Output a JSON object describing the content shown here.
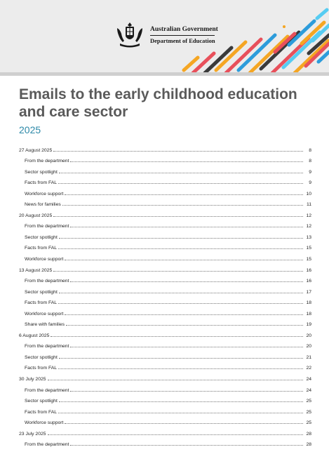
{
  "header": {
    "gov_name": "Australian Government",
    "department": "Department of Education"
  },
  "title": "Emails to the early childhood education and care sector",
  "year": "2025",
  "colors": {
    "title": "#5a5a5a",
    "year": "#2d89a8",
    "stripe_colors": [
      "#f5a623",
      "#e8505b",
      "#3a3a3a",
      "#2d9cdb",
      "#56ccf2"
    ]
  },
  "toc": [
    {
      "label": "27 August 2025",
      "page": "8",
      "level": 1
    },
    {
      "label": "From the department",
      "page": "8",
      "level": 2
    },
    {
      "label": "Sector spotlight",
      "page": "9",
      "level": 2
    },
    {
      "label": "Facts from FAL",
      "page": "9",
      "level": 2
    },
    {
      "label": "Workforce support",
      "page": "10",
      "level": 2
    },
    {
      "label": "News for families",
      "page": "11",
      "level": 2
    },
    {
      "label": "20 August 2025",
      "page": "12",
      "level": 1
    },
    {
      "label": "From the department",
      "page": "12",
      "level": 2
    },
    {
      "label": "Sector spotlight",
      "page": "13",
      "level": 2
    },
    {
      "label": "Facts from FAL",
      "page": "15",
      "level": 2
    },
    {
      "label": "Workforce support",
      "page": "15",
      "level": 2
    },
    {
      "label": "13 August 2025",
      "page": "16",
      "level": 1
    },
    {
      "label": "From the department",
      "page": "16",
      "level": 2
    },
    {
      "label": "Sector spotlight",
      "page": "17",
      "level": 2
    },
    {
      "label": "Facts from FAL",
      "page": "18",
      "level": 2
    },
    {
      "label": "Workforce support",
      "page": "18",
      "level": 2
    },
    {
      "label": "Share with families",
      "page": "19",
      "level": 2
    },
    {
      "label": "6 August 2025",
      "page": "20",
      "level": 1
    },
    {
      "label": "From the department",
      "page": "20",
      "level": 2
    },
    {
      "label": "Sector spotlight",
      "page": "21",
      "level": 2
    },
    {
      "label": "Facts from FAL",
      "page": "22",
      "level": 2
    },
    {
      "label": "30 July 2025",
      "page": "24",
      "level": 1
    },
    {
      "label": "From the department",
      "page": "24",
      "level": 2
    },
    {
      "label": "Sector spotlight",
      "page": "25",
      "level": 2
    },
    {
      "label": "Facts from FAL",
      "page": "25",
      "level": 2
    },
    {
      "label": "Workforce support",
      "page": "25",
      "level": 2
    },
    {
      "label": "23 July 2025",
      "page": "28",
      "level": 1
    },
    {
      "label": "From the department",
      "page": "28",
      "level": 2
    }
  ]
}
